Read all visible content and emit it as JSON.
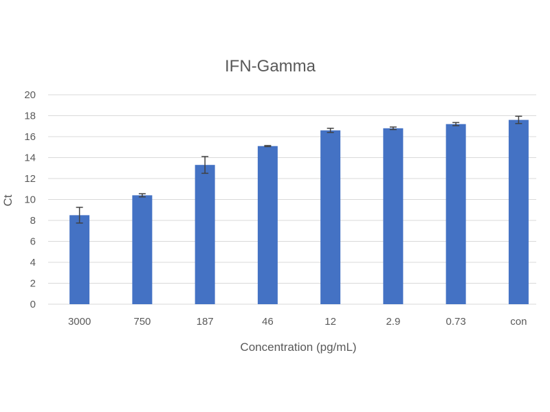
{
  "chart_data": {
    "type": "bar",
    "title": "IFN-Gamma",
    "xlabel": "Concentration (pg/mL)",
    "ylabel": "Ct",
    "categories": [
      "3000",
      "750",
      "187",
      "46",
      "12",
      "2.9",
      "0.73",
      "con"
    ],
    "series": [
      {
        "values": [
          8.5,
          10.4,
          13.3,
          15.1,
          16.6,
          16.8,
          17.2,
          17.6
        ],
        "error": [
          0.75,
          0.15,
          0.8,
          0.05,
          0.2,
          0.12,
          0.15,
          0.35
        ]
      }
    ],
    "ylim": [
      0,
      20
    ],
    "yticks": [
      0,
      2,
      4,
      6,
      8,
      10,
      12,
      14,
      16,
      18,
      20
    ],
    "grid": true,
    "legend": "none",
    "bar_color": "#4472c4"
  }
}
